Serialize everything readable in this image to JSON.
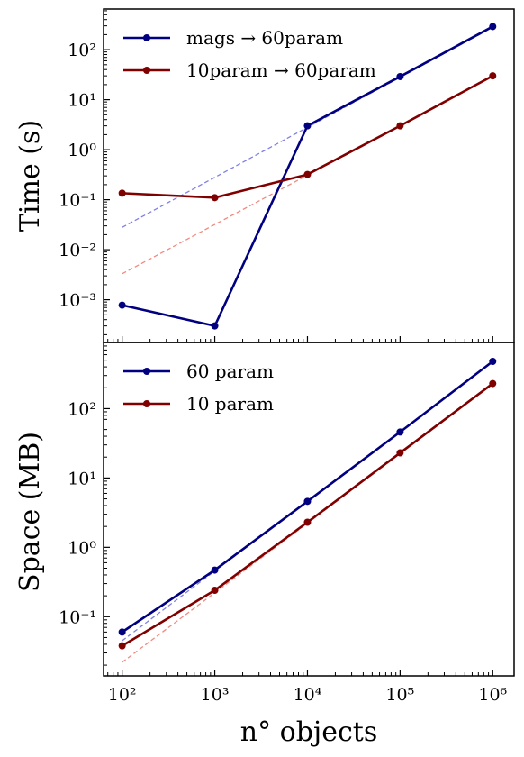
{
  "chart_data": [
    {
      "type": "line",
      "ylabel": "Time (s)",
      "xlabel": "",
      "xscale": "log",
      "yscale": "log",
      "xlim": [
        63,
        1700000
      ],
      "ylim": [
        0.00014,
        650
      ],
      "yticks": [
        {
          "value": 0.001,
          "label": "10⁻³"
        },
        {
          "value": 0.01,
          "label": "10⁻²"
        },
        {
          "value": 0.1,
          "label": "10⁻¹"
        },
        {
          "value": 1,
          "label": "10⁰"
        },
        {
          "value": 10,
          "label": "10¹"
        },
        {
          "value": 100,
          "label": "10²"
        }
      ],
      "legend_position": "top-left",
      "series": [
        {
          "name": "mags → 60param",
          "color": "#000080",
          "x": [
            100,
            1000,
            10000,
            100000,
            1000000
          ],
          "y": [
            0.00078,
            0.0003,
            3.0,
            29.0,
            290.0
          ],
          "fit": {
            "color": "#7f7fe8",
            "from": [
              100,
              0.028
            ],
            "to": [
              1000000,
              280
            ]
          }
        },
        {
          "name": "10param → 60param",
          "color": "#800000",
          "x": [
            100,
            1000,
            10000,
            100000,
            1000000
          ],
          "y": [
            0.135,
            0.11,
            0.32,
            3.0,
            30.0
          ],
          "fit": {
            "color": "#f08a80",
            "from": [
              100,
              0.0033
            ],
            "to": [
              1000000,
              29
            ]
          }
        }
      ]
    },
    {
      "type": "line",
      "ylabel": "Space (MB)",
      "xlabel": "n° objects",
      "xscale": "log",
      "yscale": "log",
      "xlim": [
        63,
        1700000
      ],
      "ylim": [
        0.014,
        900
      ],
      "xticks": [
        {
          "value": 100,
          "label": "10²"
        },
        {
          "value": 1000,
          "label": "10³"
        },
        {
          "value": 10000,
          "label": "10⁴"
        },
        {
          "value": 100000,
          "label": "10⁵"
        },
        {
          "value": 1000000,
          "label": "10⁶"
        }
      ],
      "yticks": [
        {
          "value": 0.1,
          "label": "10⁻¹"
        },
        {
          "value": 1,
          "label": "10⁰"
        },
        {
          "value": 10,
          "label": "10¹"
        },
        {
          "value": 100,
          "label": "10²"
        }
      ],
      "legend_position": "top-left",
      "series": [
        {
          "name": "60 param",
          "color": "#000080",
          "x": [
            100,
            1000,
            10000,
            100000,
            1000000
          ],
          "y": [
            0.06,
            0.47,
            4.6,
            46,
            480
          ],
          "fit": {
            "color": "#7f7fe8",
            "from": [
              100,
              0.045
            ],
            "to": [
              1000000,
              470
            ]
          }
        },
        {
          "name": "10 param",
          "color": "#800000",
          "x": [
            100,
            1000,
            10000,
            100000,
            1000000
          ],
          "y": [
            0.038,
            0.24,
            2.3,
            23,
            230
          ],
          "fit": {
            "color": "#f08a80",
            "from": [
              100,
              0.022
            ],
            "to": [
              1000000,
              225
            ]
          }
        }
      ]
    }
  ]
}
